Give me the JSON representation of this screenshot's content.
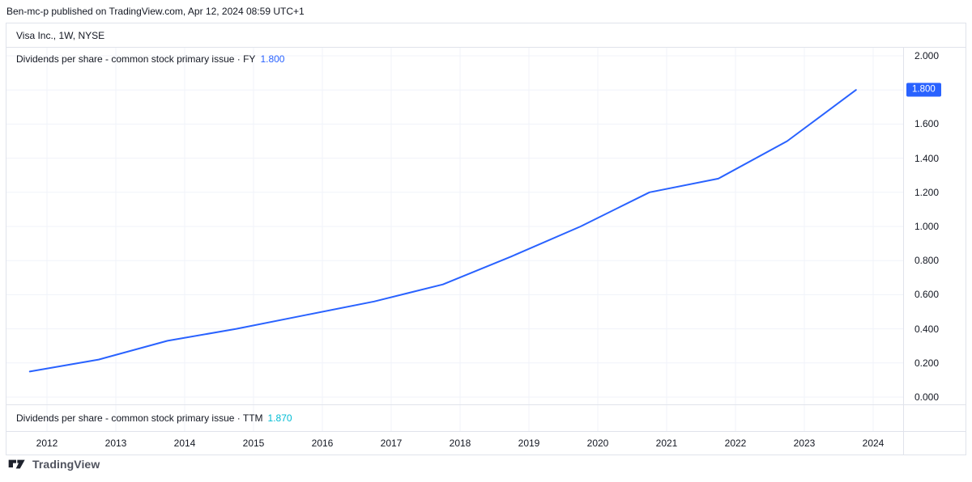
{
  "page": {
    "attribution": "Ben-mc-p published on TradingView.com, Apr 12, 2024 08:59 UTC+1",
    "brand": "TradingView"
  },
  "chart": {
    "symbol_title": "Visa Inc., 1W, NYSE",
    "main_legend": {
      "label": "Dividends per share - common stock primary issue · FY",
      "value": "1.800"
    },
    "bottom_legend": {
      "label": "Dividends per share - common stock primary issue · TTM",
      "value": "1.870"
    },
    "price_axis": {
      "badge_value": "1.800"
    }
  },
  "colors": {
    "fy_line": "#2962FF",
    "fy_value_text": "#2962FF",
    "ttm_value_text": "#00BCD4",
    "badge_bg": "#2962FF",
    "grid": "#f0f3fa",
    "border": "#e0e3eb",
    "text": "#131722"
  },
  "chart_data": {
    "type": "line",
    "title": "Dividends per share - common stock primary issue",
    "subtitle": "Visa Inc., 1W, NYSE",
    "legend_position": "top-left",
    "grid": true,
    "x_unit": "fiscal year end (~Oct of calendar year)",
    "x_ticks": [
      2012,
      2013,
      2014,
      2015,
      2016,
      2017,
      2018,
      2019,
      2020,
      2021,
      2022,
      2023,
      2024
    ],
    "y_ticks": [
      2.0,
      1.8,
      1.6,
      1.4,
      1.2,
      1.0,
      0.8,
      0.6,
      0.4,
      0.2,
      0.0
    ],
    "ylim": [
      0.0,
      2.0
    ],
    "xlim_years": [
      2011.55,
      2024.45
    ],
    "y_tick_format": "0.000",
    "series": [
      {
        "name": "Dividends per share - FY",
        "color": "#2962FF",
        "fiscal_years": [
          2011,
          2012,
          2013,
          2014,
          2015,
          2016,
          2017,
          2018,
          2019,
          2020,
          2021,
          2022,
          2023
        ],
        "x": [
          2011.75,
          2012.75,
          2013.75,
          2014.75,
          2015.75,
          2016.75,
          2017.75,
          2018.75,
          2019.75,
          2020.75,
          2021.75,
          2022.75,
          2023.75
        ],
        "values": [
          0.15,
          0.22,
          0.33,
          0.4,
          0.48,
          0.56,
          0.66,
          0.825,
          1.0,
          1.2,
          1.28,
          1.5,
          1.8
        ]
      }
    ],
    "last_value_fy": 1.8,
    "last_value_ttm": 1.87
  }
}
